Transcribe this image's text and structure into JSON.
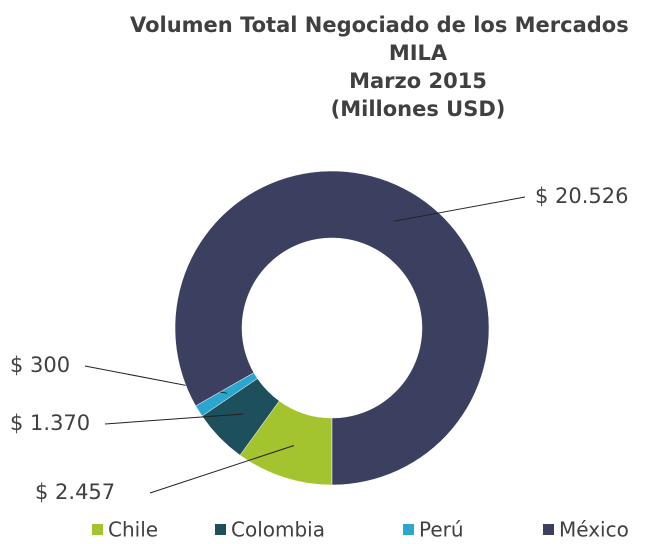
{
  "chart_data": {
    "type": "donut",
    "title": [
      "Volumen Total Negociado de los Mercados",
      "MILA",
      "Marzo 2015",
      "(Millones USD)"
    ],
    "categories": [
      "Chile",
      "Colombia",
      "Perú",
      "México"
    ],
    "values": [
      2457,
      1370,
      300,
      20526
    ],
    "value_labels": [
      "$ 2.457",
      "$ 1.370",
      "$ 300",
      "$ 20.526"
    ],
    "colors": [
      "#a3c42f",
      "#1d4f5c",
      "#2aa6cf",
      "#3b4060"
    ],
    "legend": "bottom"
  }
}
